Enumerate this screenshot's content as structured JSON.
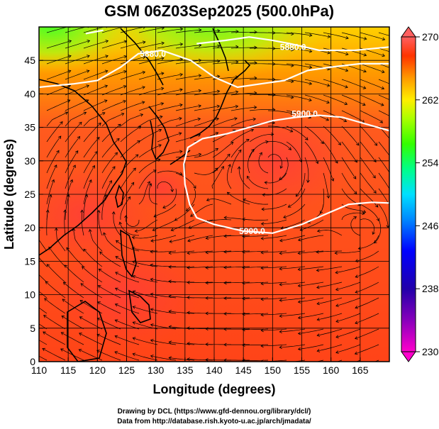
{
  "chart_data": {
    "type": "heatmap",
    "title": "GSM 06Z03Sep2025 (500.0hPa)",
    "xlabel": "Longitude (degrees)",
    "ylabel": "Latitude  (degrees)",
    "xlim": [
      110,
      170
    ],
    "ylim": [
      0,
      50
    ],
    "xticks": [
      "110",
      "115",
      "120",
      "125",
      "130",
      "135",
      "140",
      "145",
      "150",
      "155",
      "160",
      "165"
    ],
    "yticks": [
      "0",
      "5",
      "10",
      "15",
      "20",
      "25",
      "30",
      "35",
      "40",
      "45"
    ],
    "colorbar": {
      "ticks": [
        "230",
        "238",
        "246",
        "254",
        "262",
        "270"
      ],
      "range": [
        230,
        270
      ],
      "colors": [
        "#ff00cc",
        "#3300aa",
        "#0000ff",
        "#00c8ff",
        "#00ff66",
        "#66ff00",
        "#ffff00",
        "#ff9900",
        "#ff3300",
        "#ff5555"
      ]
    },
    "contours": [
      {
        "label": "5880.0",
        "points": [
          [
            110,
            41
          ],
          [
            116,
            41.5
          ],
          [
            120,
            42
          ],
          [
            124,
            44
          ],
          [
            127,
            46
          ],
          [
            131,
            46.5
          ],
          [
            136,
            45
          ],
          [
            140,
            42.5
          ],
          [
            144,
            41
          ],
          [
            148,
            41.5
          ],
          [
            152,
            42
          ],
          [
            156,
            43.5
          ],
          [
            160,
            44
          ],
          [
            165,
            44.5
          ],
          [
            170,
            44.5
          ]
        ]
      },
      {
        "label": "5880.0",
        "points": [
          [
            137,
            47.5
          ],
          [
            142,
            48
          ],
          [
            146,
            48.5
          ],
          [
            150,
            48
          ],
          [
            153,
            47.5
          ],
          [
            158,
            46.5
          ],
          [
            164,
            46.5
          ],
          [
            170,
            47
          ]
        ]
      },
      {
        "label": "5880.0",
        "points": [
          [
            118,
            49
          ],
          [
            121,
            49.5
          ]
        ]
      },
      {
        "label": "5900.0",
        "points": [
          [
            170,
            34.5
          ],
          [
            166,
            35.5
          ],
          [
            162,
            36.5
          ],
          [
            158,
            36.8
          ],
          [
            154,
            36.5
          ],
          [
            150,
            36
          ],
          [
            146,
            35
          ],
          [
            142,
            34
          ],
          [
            138,
            33.3
          ],
          [
            135.5,
            32
          ],
          [
            134.8,
            29.5
          ],
          [
            135,
            26.5
          ],
          [
            135.8,
            23.5
          ],
          [
            137,
            21.5
          ],
          [
            140,
            20.5
          ],
          [
            145,
            19.5
          ],
          [
            150,
            19.2
          ],
          [
            155,
            20.5
          ],
          [
            159,
            22
          ],
          [
            163,
            23.5
          ],
          [
            167,
            23.8
          ],
          [
            170,
            23.7
          ]
        ]
      }
    ],
    "contour_label_positions": [
      {
        "text": "5880.0",
        "lon": 129.5,
        "lat": 46
      },
      {
        "text": "5880.0",
        "lon": 153.5,
        "lat": 47
      },
      {
        "text": "5900.0",
        "lon": 155.5,
        "lat": 37
      },
      {
        "text": "5900.0",
        "lon": 146.5,
        "lat": 19.5
      }
    ],
    "warm_regions": [
      {
        "lon": 151,
        "lat": 30,
        "r": 9
      },
      {
        "lon": 118,
        "lat": 22,
        "r": 8
      },
      {
        "lon": 125,
        "lat": 10,
        "r": 9
      },
      {
        "lon": 131,
        "lat": 26,
        "r": 4
      }
    ],
    "cool_regions": [
      {
        "lon": 140,
        "lat": 52,
        "r": 14
      },
      {
        "lon": 112,
        "lat": 50,
        "r": 10
      }
    ],
    "vortices": [
      {
        "lon": 150,
        "lat": 30
      },
      {
        "lon": 131,
        "lat": 26
      },
      {
        "lon": 126,
        "lat": 21
      },
      {
        "lon": 166,
        "lat": 20
      }
    ]
  },
  "credits": {
    "line1": "Drawing by DCL (https://www.gfd-dennou.org/library/dcl/)",
    "line2": "Data from http://database.rish.kyoto-u.ac.jp/arch/jmadata/"
  }
}
